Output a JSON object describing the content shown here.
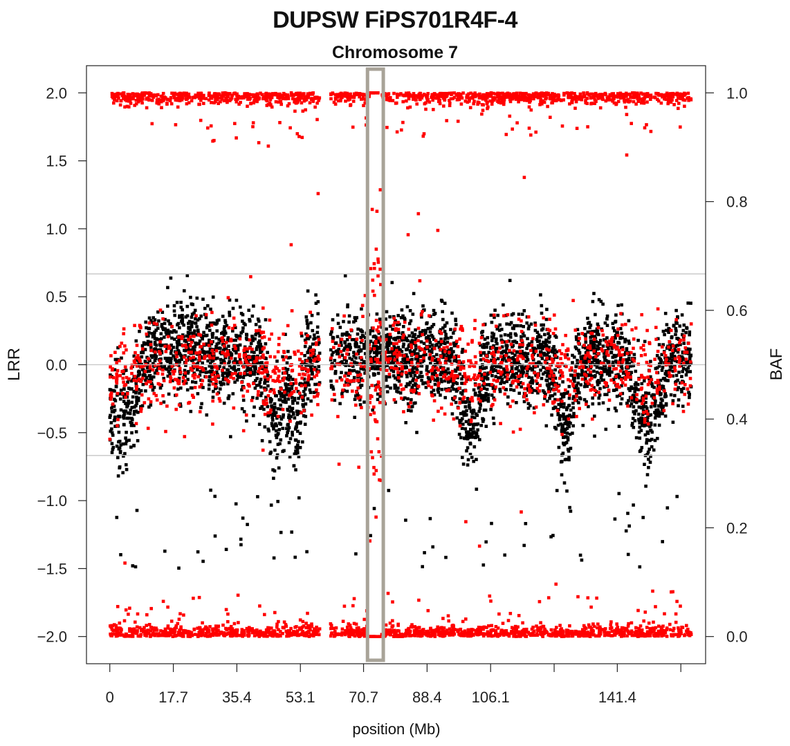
{
  "chart_data": {
    "type": "scatter",
    "title": "DUPSW FiPS701R4F-4",
    "subtitle": "Chromosome 7",
    "xlabel": "position (Mb)",
    "ylabel_left": "LRR",
    "ylabel_right": "BAF",
    "xlim": [
      -6.5,
      166
    ],
    "x_ticks": [
      0,
      17.7,
      35.4,
      53.1,
      70.7,
      88.4,
      106.1,
      123.8,
      141.4,
      159.1
    ],
    "x_tick_labels": [
      "0",
      "17.7",
      "35.4",
      "53.1",
      "70.7",
      "88.4",
      "106.1",
      "",
      "141.4",
      ""
    ],
    "left_axis": {
      "ylim": [
        -2.2,
        2.2
      ],
      "ticks": [
        -2.0,
        -1.5,
        -1.0,
        -0.5,
        0.0,
        0.5,
        1.0,
        1.5,
        2.0
      ],
      "tick_labels": [
        "−2.0",
        "−1.5",
        "−1.0",
        "−0.5",
        "0.0",
        "0.5",
        "1.0",
        "1.5",
        "2.0"
      ]
    },
    "right_axis": {
      "ylim": [
        -0.05,
        1.05
      ],
      "ticks": [
        0.0,
        0.2,
        0.4,
        0.6,
        0.8,
        1.0
      ],
      "tick_labels": [
        "0.0",
        "0.2",
        "0.4",
        "0.6",
        "0.8",
        "1.0"
      ]
    },
    "reference_lines_baf": [
      0.333,
      0.5,
      0.667
    ],
    "centromere_gap_mb": [
      58.5,
      61.5
    ],
    "highlight_region_mb": [
      71.8,
      76.2
    ],
    "series": [
      {
        "color": "#000000",
        "measure": "LRR",
        "typical_range": [
          -0.4,
          0.45
        ]
      },
      {
        "color": "#ff0000",
        "measure": "BAF",
        "bands": [
          0.0,
          0.5,
          1.0
        ]
      }
    ]
  }
}
